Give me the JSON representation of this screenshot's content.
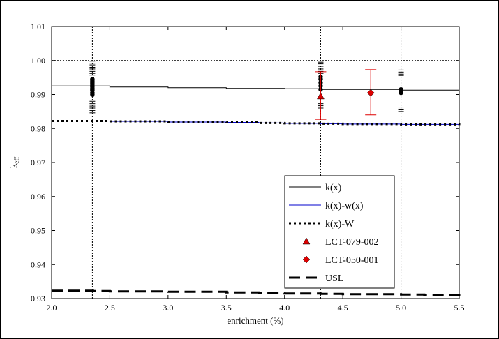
{
  "chart_data": {
    "type": "line",
    "xlabel": "enrichment (%)",
    "ylabel": "k",
    "ylabel_sub": "eff",
    "xlim": [
      2.0,
      5.5
    ],
    "ylim": [
      0.93,
      1.01
    ],
    "x_ticks": [
      "2.0",
      "2.5",
      "3.0",
      "3.5",
      "4.0",
      "4.5",
      "5.0",
      "5.5"
    ],
    "y_ticks": [
      "0.93",
      "0.94",
      "0.95",
      "0.96",
      "0.97",
      "0.98",
      "0.99",
      "1.00",
      "1.01"
    ],
    "reference_lines": {
      "vertical_x": [
        2.35,
        4.31,
        5.0
      ],
      "horizontal_y": [
        1.0
      ]
    },
    "grid": false,
    "legend_position": "lower-right",
    "series": [
      {
        "name": "k(x)",
        "style": "solid",
        "color": "#000000",
        "x": [
          2.0,
          2.35,
          2.5,
          3.0,
          3.5,
          4.0,
          4.31,
          4.5,
          5.0,
          5.5
        ],
        "y": [
          0.9925,
          0.9925,
          0.9922,
          0.992,
          0.9918,
          0.9917,
          0.9915,
          0.9915,
          0.9913,
          0.9912
        ]
      },
      {
        "name": "k(x)-w(x)",
        "style": "solid",
        "color": "#0000cc",
        "x": [
          2.0,
          2.35,
          2.5,
          3.0,
          3.5,
          3.78,
          4.0,
          4.31,
          4.5,
          5.0,
          5.5
        ],
        "y": [
          0.9822,
          0.9822,
          0.9821,
          0.9819,
          0.9818,
          0.9816,
          0.9815,
          0.9814,
          0.9813,
          0.9812,
          0.981
        ]
      },
      {
        "name": "k(x)-W",
        "style": "dotted",
        "color": "#000000",
        "x": [
          2.0,
          2.35,
          2.5,
          3.0,
          3.5,
          3.78,
          4.0,
          4.31,
          4.5,
          5.0,
          5.5
        ],
        "y": [
          0.9822,
          0.9822,
          0.9821,
          0.9819,
          0.9818,
          0.9816,
          0.9815,
          0.9814,
          0.9813,
          0.9812,
          0.981
        ]
      },
      {
        "name": "USL",
        "style": "dashed",
        "color": "#000000",
        "x": [
          2.0,
          2.35,
          2.5,
          3.0,
          3.5,
          3.78,
          4.0,
          4.31,
          4.5,
          5.0,
          5.2,
          5.5
        ],
        "y": [
          0.9323,
          0.9322,
          0.9321,
          0.932,
          0.9318,
          0.9317,
          0.9315,
          0.9314,
          0.9313,
          0.9312,
          0.931,
          0.9308
        ]
      }
    ],
    "experiments": [
      {
        "name": "LCT-079-002",
        "marker": "triangle",
        "color": "#dd0000",
        "points": [
          {
            "x": 4.31,
            "y": 0.9895,
            "err_low": 0.9827,
            "err_high": 0.9967
          }
        ]
      },
      {
        "name": "LCT-050-001",
        "marker": "diamond",
        "color": "#dd0000",
        "points": [
          {
            "x": 4.74,
            "y": 0.9905,
            "err_low": 0.984,
            "err_high": 0.9973
          }
        ]
      }
    ],
    "benchmark_points": [
      {
        "x": 2.35,
        "y": [
          0.9945,
          0.9942,
          0.9938,
          0.9935,
          0.9932,
          0.9928,
          0.9925,
          0.9922,
          0.9918,
          0.9915,
          0.9912,
          0.9905,
          0.99
        ],
        "err_ticks": [
          0.9998,
          0.9992,
          0.9987,
          0.998,
          0.9975,
          0.9968,
          0.9962,
          0.9957,
          0.988,
          0.9873,
          0.9866,
          0.986,
          0.9853,
          0.9846
        ]
      },
      {
        "x": 4.31,
        "y": [
          0.9952,
          0.9945,
          0.9935,
          0.9925,
          0.9915
        ],
        "err_ticks": [
          0.9995,
          0.999,
          0.9983,
          0.9975,
          0.9968,
          0.9962,
          0.9873,
          0.9867,
          0.986
        ]
      },
      {
        "x": 5.0,
        "y": [
          0.9915,
          0.991,
          0.9905
        ],
        "err_ticks": [
          0.9972,
          0.9966,
          0.996,
          0.9956,
          0.9863,
          0.9857,
          0.985
        ]
      }
    ]
  }
}
